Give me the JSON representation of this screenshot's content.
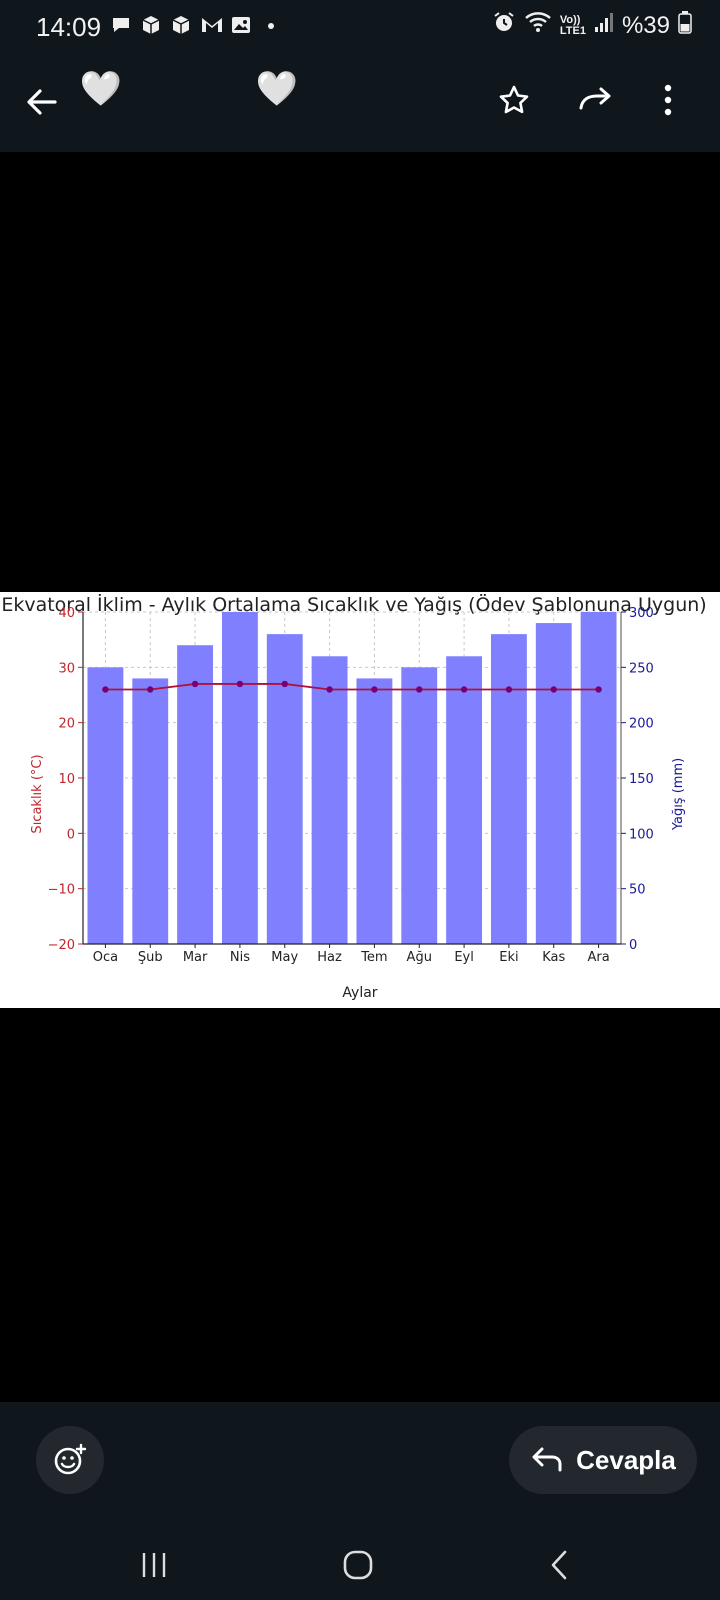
{
  "status": {
    "time": "14:09",
    "network_line1": "Vo))",
    "network_line2": "LTE1",
    "battery": "%39"
  },
  "appbar": {
    "reactions": [
      "🤍",
      "🤍"
    ],
    "icons": [
      "back-arrow-icon",
      "star-icon",
      "forward-icon",
      "more-vertical-icon"
    ]
  },
  "bottom": {
    "reply_label": "Cevapla"
  },
  "chart_data": {
    "type": "bar",
    "title": "Ekvatoral İklim - Aylık Ortalama Sıcaklık ve Yağış (Ödev Şablonuna Uygun)",
    "xlabel": "Aylar",
    "ylabel_left": "Sıcaklık (°C)",
    "ylabel_right": "Yağış (mm)",
    "categories": [
      "Oca",
      "Şub",
      "Mar",
      "Nis",
      "May",
      "Haz",
      "Tem",
      "Ağu",
      "Eyl",
      "Eki",
      "Kas",
      "Ara"
    ],
    "precip_mm": [
      250,
      240,
      270,
      300,
      280,
      260,
      240,
      250,
      260,
      280,
      290,
      300
    ],
    "temp_c": [
      26,
      26,
      27,
      27,
      27,
      26,
      26,
      26,
      26,
      26,
      26,
      26
    ],
    "ylim_left": [
      -20,
      40
    ],
    "ylim_right": [
      0,
      300
    ],
    "yticks_left": [
      "40",
      "30",
      "20",
      "10",
      "0",
      "−10",
      "−20"
    ],
    "yticks_right": [
      "300",
      "250",
      "200",
      "150",
      "100",
      "50",
      "0"
    ],
    "grid": true,
    "colors": {
      "bars": "#8080ff",
      "line": "#b0103a",
      "markers": "#7a0070",
      "left_axis": "#c0262d",
      "right_axis": "#1a1a9a"
    }
  }
}
